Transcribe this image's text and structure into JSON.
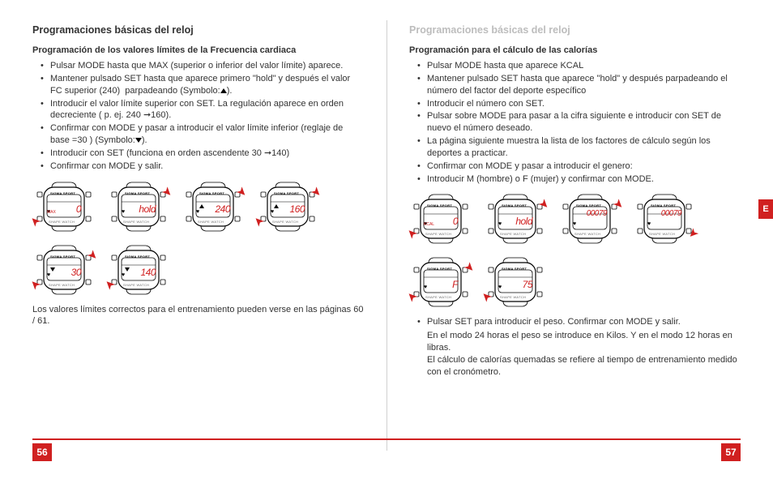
{
  "left": {
    "title": "Programaciones básicas del reloj",
    "subtitle": "Programación de los valores límites de la Frecuencia cardiaca",
    "bullets": [
      "Pulsar MODE hasta que  MAX (superior o inferior del valor límite) aparece.",
      "Mantener pulsado SET hasta que aparece primero \"hold\" y después el valor FC superior (240)  parpadeando (Symbolo:▲).",
      "Introducir el valor límite superior con SET. La regulación aparece en orden  decreciente ( p. ej. 240 ➞160).",
      "Confirmar con MODE y pasar a introducir el valor límite inferior (reglaje de base =30 ) (Symbolo:▼).",
      "Introducir con SET (funciona en orden ascendente 30 ➞140)",
      "Confirmar con MODE y salir."
    ],
    "footnote": "Los valores límites correctos para el entrenamiento pueden verse en las páginas 60 / 61.",
    "watches": [
      {
        "disp": "0",
        "label": "MAX",
        "labelcolor": "#d02020",
        "arrows": [
          {
            "side": "bl"
          }
        ]
      },
      {
        "disp": "hold",
        "arrows": [
          {
            "side": "tr"
          }
        ]
      },
      {
        "disp": "240",
        "tri": "up",
        "arrows": [
          {
            "side": "tr"
          }
        ]
      },
      {
        "disp": "160",
        "tri": "up",
        "arrows": [
          {
            "side": "bl"
          },
          {
            "side": "tr"
          }
        ]
      },
      {
        "disp": "30",
        "tri": "down",
        "arrows": [
          {
            "side": "bl"
          },
          {
            "side": "tr"
          }
        ]
      },
      {
        "disp": "140",
        "tri": "down",
        "arrows": [
          {
            "side": "bl"
          }
        ]
      }
    ],
    "page": "56"
  },
  "right": {
    "title": "Programaciones básicas del reloj",
    "subtitle": "Programación para el cálculo de las calorías",
    "bullets": [
      "Pulsar MODE hasta que aparece KCAL",
      "Mantener pulsado SET hasta que aparece \"hold\" y después parpadeando el número  del factor del deporte específico",
      "Introducir el  número con SET.",
      "Pulsar sobre MODE para pasar a la cifra siguiente e introducir con SET de nuevo el número deseado.",
      "La página siguiente muestra la lista de los factores de cálculo según los deportes a practicar.",
      "Confirmar con MODE y pasar a introducir el genero:",
      "Introducir M (hombre) o F (mujer) y confirmar con MODE."
    ],
    "bullets2": [
      "Pulsar SET para introducir el peso. Confirmar con MODE y salir."
    ],
    "tail": "En el modo 24 horas el peso se introduce en Kilos.  Y en el modo 12 horas en libras.\nEl cálculo de calorías quemadas se refiere al tiempo de entrenamiento medido con el cronómetro.",
    "watches": [
      {
        "disp": "0",
        "label": "KCAL",
        "labelcolor": "#d02020",
        "arrows": [
          {
            "side": "bl"
          }
        ]
      },
      {
        "disp": "hold",
        "arrows": [
          {
            "side": "tr"
          }
        ]
      },
      {
        "disp": "00079",
        "top": true,
        "arrows": [
          {
            "side": "tr"
          }
        ]
      },
      {
        "disp": "00079",
        "top": true,
        "arrows": [
          {
            "side": "br"
          }
        ]
      },
      {
        "disp": "F",
        "arrows": [
          {
            "side": "bl"
          },
          {
            "side": "tr"
          }
        ]
      },
      {
        "disp": "75",
        "arrows": [
          {
            "side": "bl"
          }
        ]
      }
    ],
    "page": "57",
    "tab": "E"
  },
  "brand": "SIGMA SPORT",
  "footbrand": "SHAPE WATCH",
  "colors": {
    "accent": "#d02020"
  }
}
